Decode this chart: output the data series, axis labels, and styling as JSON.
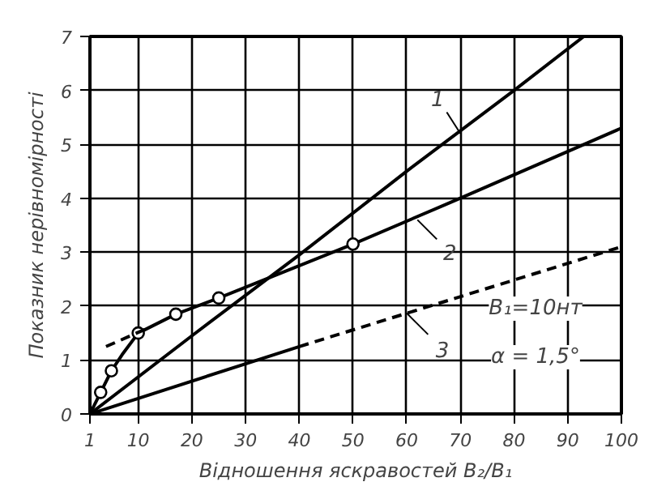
{
  "chart_data": {
    "type": "line",
    "xlabel": "Відношення яскравостей B₂/B₁",
    "ylabel": "Показник нерівномірності",
    "xlim": [
      1,
      100
    ],
    "ylim": [
      0,
      7
    ],
    "xticks": [
      1,
      10,
      20,
      30,
      40,
      50,
      60,
      70,
      80,
      90,
      100
    ],
    "yticks": [
      0,
      1,
      2,
      3,
      4,
      5,
      6,
      7
    ],
    "grid": true,
    "line_style": "solid",
    "series": [
      {
        "color": "#000000",
        "x": [
          1,
          20,
          40,
          60,
          80,
          93
        ],
        "values": [
          0,
          1.45,
          2.95,
          4.5,
          6,
          7
        ]
      },
      {
        "color": "#000000",
        "x": [
          1,
          3,
          5,
          7,
          10,
          17,
          25,
          50,
          70,
          100
        ],
        "values": [
          0,
          0.4,
          0.8,
          1.1,
          1.5,
          1.85,
          2.15,
          3.15,
          4,
          5.3
        ]
      },
      {
        "type": "scatter",
        "marker": "circle",
        "color": "#000000",
        "x": [
          3,
          5,
          10,
          17,
          25,
          50
        ],
        "values": [
          0.4,
          0.8,
          1.5,
          1.85,
          2.15,
          3.15
        ]
      },
      {
        "color": "#000000",
        "x": [
          1,
          40
        ],
        "values": [
          0,
          1.25
        ]
      },
      {
        "color": "#000000",
        "line_style": "dashed",
        "x": [
          40,
          100
        ],
        "values": [
          1.25,
          3.1
        ]
      },
      {
        "color": "#000000",
        "line_style": "dashed",
        "x": [
          4,
          12
        ],
        "values": [
          1.25,
          1.6
        ]
      }
    ],
    "annotations": [
      {
        "text": "1",
        "x": 70,
        "y": 5.2
      },
      {
        "text": "2",
        "x": 62,
        "y": 3.6
      },
      {
        "text": "3",
        "x": 60,
        "y": 1.87
      },
      "B₁=10нт",
      "α = 1,5°"
    ]
  }
}
